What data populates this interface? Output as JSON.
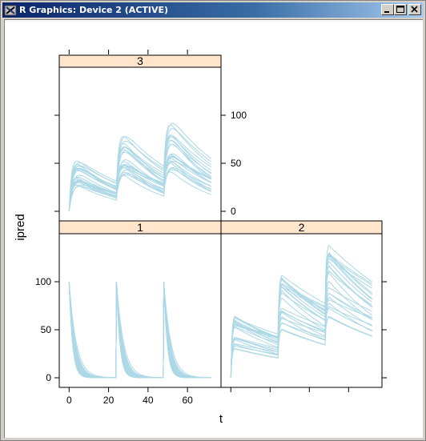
{
  "window": {
    "title": "R Graphics: Device 2 (ACTIVE)",
    "controls": [
      "minimize",
      "maximize",
      "close"
    ]
  },
  "chart_data": {
    "type": "line",
    "xlabel": "t",
    "ylabel": "ipred",
    "panels": [
      {
        "strip": "3",
        "y_ticks": [
          "0",
          "50",
          "100"
        ],
        "x_ticks": [],
        "profile": "absorption",
        "n_curves": 24
      },
      {
        "strip": "1",
        "y_ticks": [
          "0",
          "50",
          "100"
        ],
        "x_ticks": [
          "0",
          "20",
          "40",
          "60"
        ],
        "profile": "iv_bolus",
        "n_curves": 24
      },
      {
        "strip": "2",
        "y_ticks": [],
        "x_ticks": [],
        "profile": "infusion",
        "n_curves": 24
      }
    ],
    "xlim": [
      -5,
      77
    ],
    "ylim": [
      -10,
      150
    ],
    "dose_times": [
      0,
      24,
      48
    ],
    "line_color": "#add8e6",
    "strip_color": "#ffe5cc"
  }
}
